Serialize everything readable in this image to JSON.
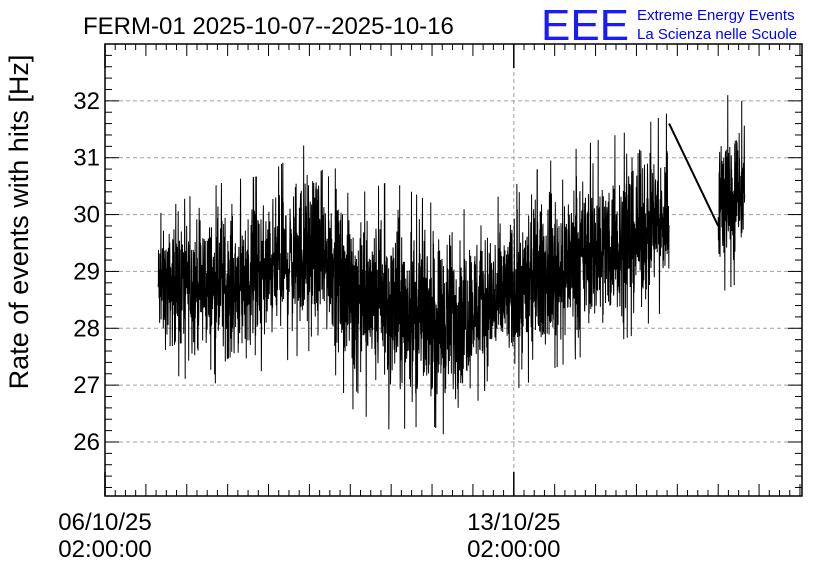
{
  "chart_data": {
    "type": "line",
    "title": "FERM-01 2025-10-07--2025-10-16",
    "ylabel": "Rate of events with hits [Hz]",
    "xlabel": "",
    "x_unit": "days",
    "xlim": [
      0,
      17.05
    ],
    "ylim": [
      25.05,
      33.0
    ],
    "grid": true,
    "y_ticks": [
      26,
      27,
      28,
      29,
      30,
      31,
      32
    ],
    "x_ticks": [
      {
        "value": 0,
        "line1": "06/10/25",
        "line2": "02:00:00"
      },
      {
        "value": 10,
        "line1": "13/10/25",
        "line2": "02:00:00"
      }
    ],
    "series": [
      {
        "x": [
          1.3,
          2.0,
          3.0,
          4.0,
          5.0,
          5.5,
          6.0,
          7.0,
          8.0,
          8.5,
          9.0,
          10.0,
          11.0,
          12.0,
          13.0,
          13.8,
          15.0,
          15.5,
          15.65
        ],
        "y_mean": [
          28.7,
          28.8,
          28.7,
          29.0,
          29.3,
          29.2,
          28.7,
          28.3,
          28.2,
          28.2,
          28.3,
          28.6,
          29.0,
          29.3,
          29.6,
          29.9,
          30.2,
          30.3,
          30.3
        ],
        "y_min": [
          27.3,
          27.1,
          27.0,
          27.3,
          27.6,
          27.4,
          26.6,
          26.2,
          26.3,
          26.0,
          26.7,
          26.9,
          27.3,
          27.6,
          27.9,
          28.4,
          28.6,
          28.8,
          28.9
        ],
        "y_max": [
          30.0,
          30.3,
          30.6,
          30.7,
          31.3,
          31.0,
          30.3,
          30.6,
          30.2,
          30.3,
          30.3,
          30.5,
          31.0,
          31.3,
          31.5,
          31.8,
          32.1,
          32.1,
          31.9
        ]
      }
    ],
    "gap_line": {
      "x": [
        13.8,
        15.0
      ],
      "y": [
        31.6,
        29.8
      ]
    },
    "color": "#000000"
  },
  "logo": {
    "letters": "EEE",
    "line1": "Extreme Energy Events",
    "line2": "La Scienza nelle Scuole",
    "color": "#0000ff"
  }
}
